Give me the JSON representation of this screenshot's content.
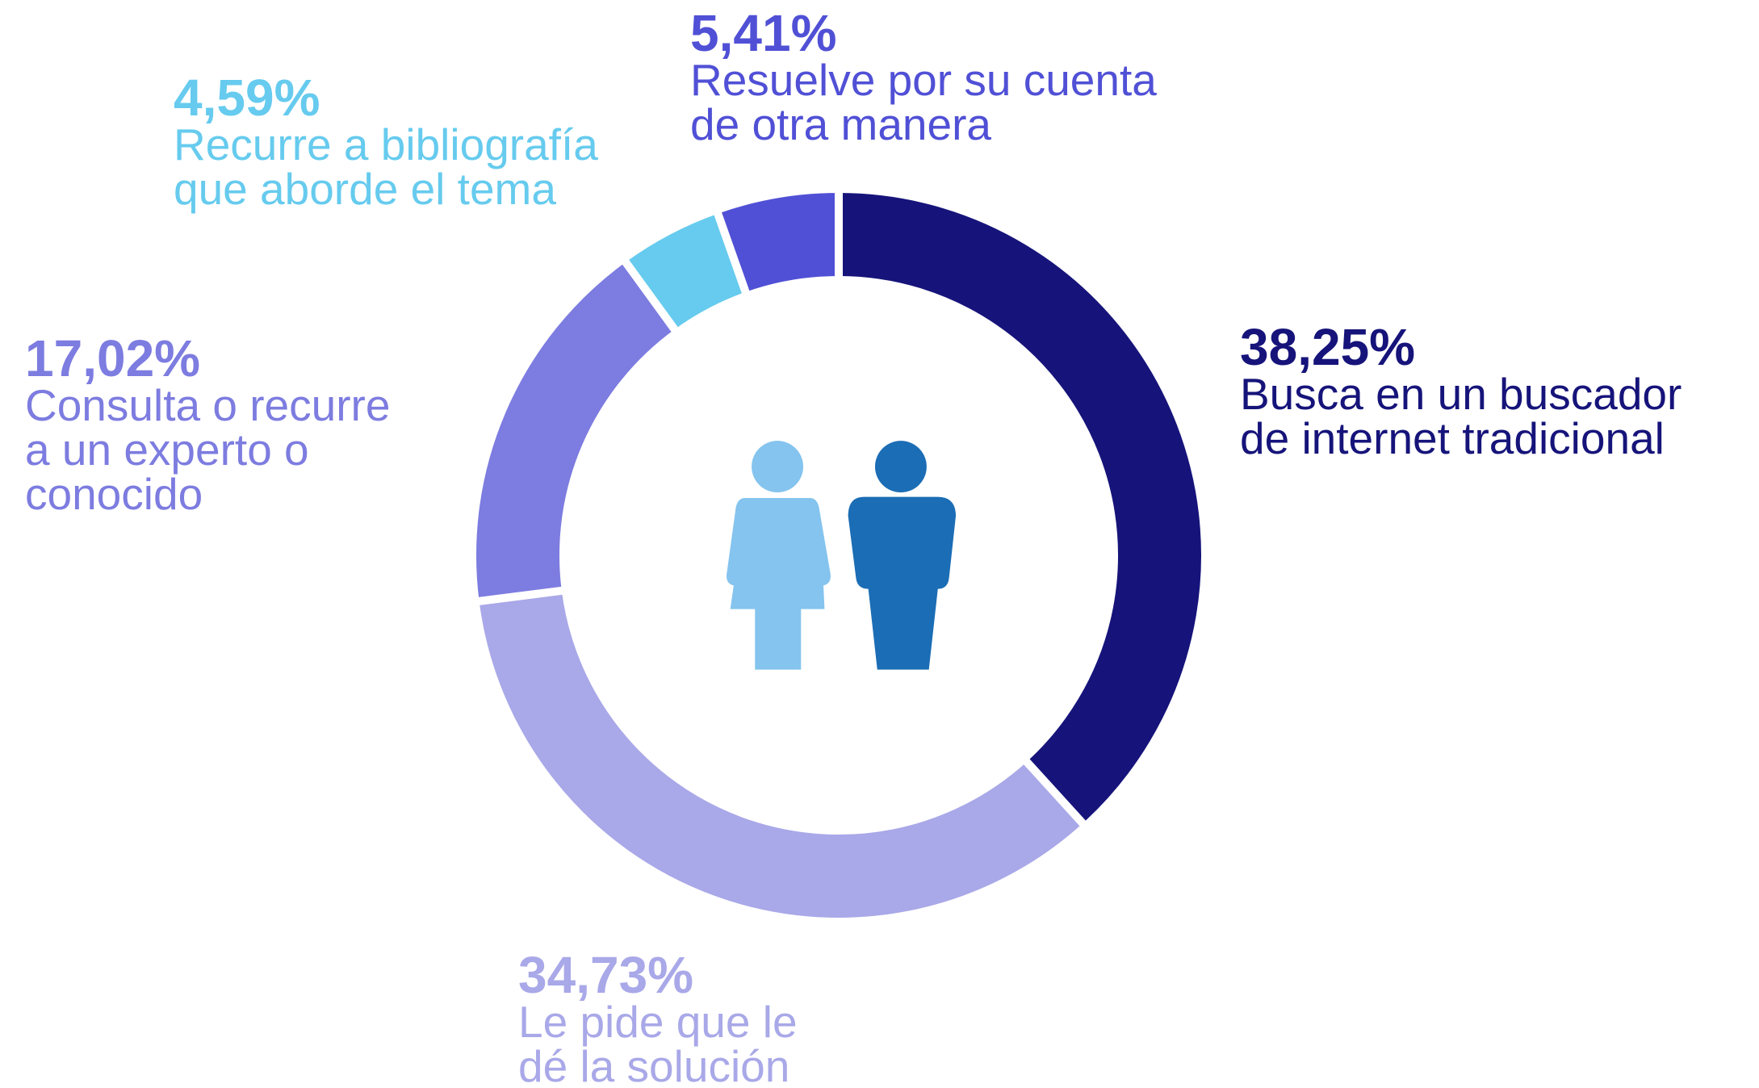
{
  "chart_data": {
    "type": "donut",
    "categories": [
      [
        "Busca en un buscador",
        "de internet tradicional"
      ],
      [
        "Le pide que le",
        "dé la solución"
      ],
      [
        "Consulta o recurre",
        "a un experto o",
        "conocido"
      ],
      [
        "Recurre a bibliografía",
        "que aborde el tema"
      ],
      [
        "Resuelve por su cuenta",
        "de otra manera"
      ]
    ],
    "values": [
      38.25,
      34.73,
      17.02,
      4.59,
      5.41
    ],
    "value_labels": [
      "38,25%",
      "34,73%",
      "17,02%",
      "4,59%",
      "5,41%"
    ],
    "colors": [
      "#16147a",
      "#a9a8e8",
      "#7d7ce0",
      "#66cbee",
      "#5050d6"
    ]
  }
}
